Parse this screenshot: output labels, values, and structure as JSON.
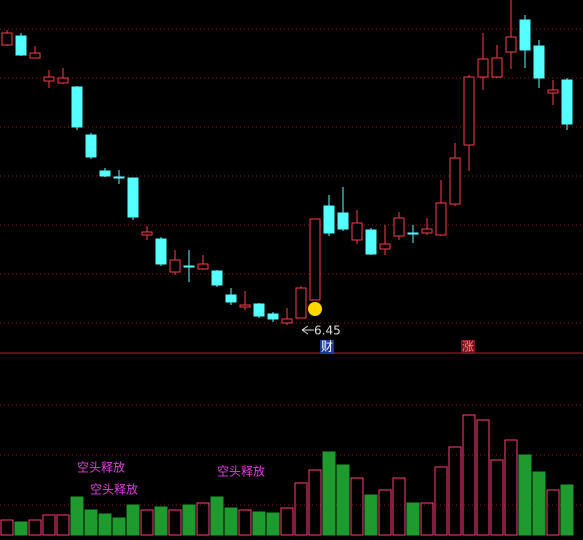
{
  "chart_data": {
    "type": "candlestick",
    "open": [
      9.25,
      9.34,
      9.12,
      8.89,
      8.87,
      8.83,
      8.35,
      7.99,
      7.93,
      7.92,
      7.35,
      7.31,
      6.98,
      7.04,
      7.01,
      6.99,
      6.75,
      6.63,
      6.66,
      6.56,
      6.47,
      6.52,
      6.7,
      7.64,
      7.57,
      7.3,
      7.4,
      7.21,
      7.34,
      7.37,
      7.37,
      7.35,
      7.66,
      8.25,
      8.93,
      8.93,
      9.18,
      9.5,
      9.24,
      8.77,
      8.9
    ],
    "high": [
      9.4,
      9.37,
      9.24,
      9.0,
      9.02,
      8.84,
      8.37,
      8.02,
      8.0,
      7.92,
      7.44,
      7.33,
      7.2,
      7.2,
      7.15,
      7.0,
      6.82,
      6.79,
      6.67,
      6.58,
      6.62,
      6.84,
      7.51,
      7.75,
      7.83,
      7.6,
      7.42,
      7.45,
      7.58,
      7.45,
      7.52,
      7.9,
      8.27,
      8.95,
      9.37,
      9.25,
      9.7,
      9.55,
      9.3,
      8.9,
      8.92
    ],
    "low": [
      9.24,
      9.14,
      9.12,
      8.82,
      8.86,
      8.4,
      8.11,
      7.93,
      7.86,
      7.5,
      7.3,
      7.04,
      6.95,
      6.88,
      7.0,
      6.83,
      6.65,
      6.6,
      6.52,
      6.48,
      6.45,
      6.52,
      6.7,
      7.34,
      7.39,
      7.26,
      7.15,
      7.15,
      7.3,
      7.27,
      7.35,
      7.34,
      7.64,
      7.99,
      8.8,
      8.92,
      9.01,
      9.02,
      8.82,
      8.65,
      8.4
    ],
    "close": [
      9.37,
      9.15,
      9.17,
      8.93,
      8.92,
      8.43,
      8.13,
      7.94,
      7.92,
      7.53,
      7.38,
      7.06,
      7.1,
      7.03,
      7.06,
      6.85,
      6.68,
      6.65,
      6.54,
      6.51,
      6.51,
      6.82,
      7.51,
      7.37,
      7.41,
      7.47,
      7.16,
      7.26,
      7.52,
      7.36,
      7.41,
      7.67,
      8.12,
      8.93,
      9.11,
      9.12,
      9.33,
      9.2,
      8.92,
      8.8,
      8.46
    ],
    "volume": [
      15,
      13,
      15,
      20,
      20,
      38,
      25,
      21,
      17,
      30,
      25,
      28,
      25,
      30,
      32,
      38,
      27,
      25,
      23,
      22,
      27,
      52,
      65,
      83,
      70,
      57,
      40,
      45,
      57,
      32,
      32,
      68,
      88,
      120,
      115,
      75,
      95,
      80,
      63,
      45,
      50
    ],
    "ylim": [
      6.18,
      9.7
    ],
    "yticks": [
      6.47,
      6.96,
      7.45,
      7.94,
      8.43,
      8.92,
      9.41
    ],
    "volume_ylim": [
      0,
      180
    ],
    "volume_yticks": [
      30,
      80,
      130
    ],
    "grid": true,
    "up_color": "#ff3a4a",
    "down_color": "#54ffff",
    "volume_up_color": "#ff3a80",
    "volume_down_color": "#1f9a2e",
    "low_label": 6.45,
    "annotations": [
      "空头释放",
      "空头释放",
      "空头释放"
    ],
    "markers": [
      "财",
      "涨"
    ]
  }
}
